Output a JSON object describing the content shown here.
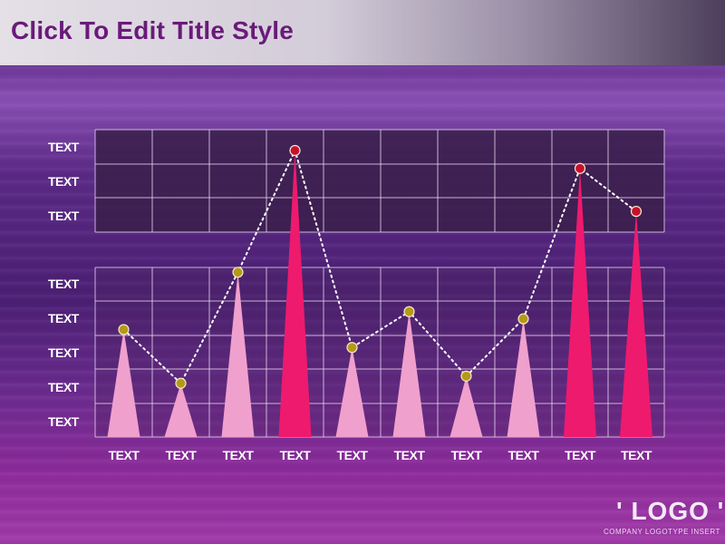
{
  "title": "Click To Edit Title Style",
  "footer_text": "",
  "logo": {
    "text": "' LOGO '",
    "subtitle": "COMPANY LOGOTYPE INSERT"
  },
  "chart_data": {
    "type": "bar",
    "categories": [
      "TEXT",
      "TEXT",
      "TEXT",
      "TEXT",
      "TEXT",
      "TEXT",
      "TEXT",
      "TEXT",
      "TEXT",
      "TEXT"
    ],
    "values": [
      3.0,
      1.5,
      4.6,
      8.0,
      2.5,
      3.5,
      1.7,
      3.3,
      7.5,
      6.3
    ],
    "highlighted": [
      false,
      false,
      false,
      true,
      false,
      false,
      false,
      false,
      true,
      true
    ],
    "y_tick_labels": [
      "TEXT",
      "TEXT",
      "TEXT",
      "TEXT",
      "TEXT",
      "TEXT",
      "TEXT",
      "TEXT"
    ],
    "ylim": [
      0,
      8
    ],
    "grid": true,
    "colors": {
      "bar_normal": "#f0a0cc",
      "bar_highlight": "#ee1a6e",
      "marker_normal": "#b59a18",
      "marker_highlight": "#c8102e",
      "grid": "#e8d8f0",
      "panel": "#3a1f4a"
    }
  }
}
